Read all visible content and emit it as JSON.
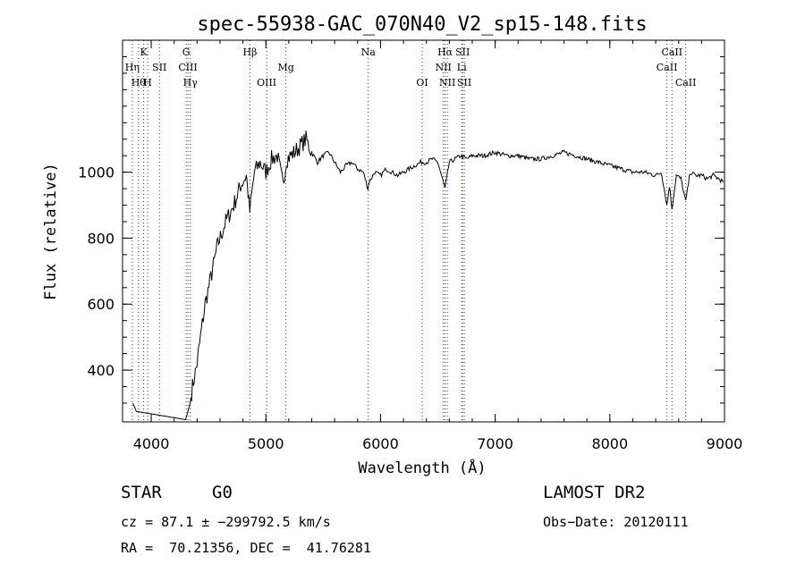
{
  "chart_data": {
    "type": "line",
    "title": "spec-55938-GAC_070N40_V2_sp15-148.fits",
    "xlabel": "Wavelength (Å)",
    "ylabel": "Flux (relative)",
    "xlim": [
      3750,
      9000
    ],
    "ylim": [
      243,
      1400
    ],
    "xticks": [
      "4000",
      "5000",
      "6000",
      "7000",
      "8000",
      "9000"
    ],
    "yticks": [
      "400",
      "600",
      "800",
      "1000"
    ],
    "grid": false,
    "spectrum": {
      "x": [
        3840,
        3870,
        4300,
        4340,
        4360,
        4400,
        4430,
        4470,
        4520,
        4580,
        4650,
        4720,
        4780,
        4830,
        4860,
        4900,
        4950,
        5000,
        5050,
        5100,
        5150,
        5180,
        5250,
        5300,
        5350,
        5400,
        5450,
        5500,
        5550,
        5600,
        5650,
        5700,
        5750,
        5800,
        5850,
        5890,
        5900,
        5950,
        6000,
        6050,
        6100,
        6150,
        6200,
        6250,
        6300,
        6350,
        6400,
        6450,
        6500,
        6563,
        6600,
        6650,
        6700,
        6750,
        6800,
        6900,
        7000,
        7100,
        7200,
        7300,
        7400,
        7500,
        7600,
        7700,
        7800,
        7900,
        8000,
        8100,
        8200,
        8300,
        8400,
        8450,
        8498,
        8520,
        8542,
        8580,
        8620,
        8662,
        8700,
        8750,
        8800,
        8850,
        8900,
        8950,
        8990
      ],
      "y": [
        300,
        275,
        250,
        300,
        350,
        420,
        500,
        600,
        680,
        780,
        850,
        900,
        960,
        990,
        880,
        1000,
        1030,
        1000,
        1040,
        1050,
        960,
        1040,
        1060,
        1080,
        1100,
        1060,
        1030,
        1050,
        1060,
        1030,
        1000,
        1020,
        1030,
        1010,
        1000,
        950,
        970,
        1000,
        990,
        1010,
        1000,
        990,
        1000,
        1010,
        1020,
        1030,
        1030,
        1040,
        1030,
        950,
        1030,
        1040,
        1050,
        1040,
        1050,
        1050,
        1060,
        1050,
        1050,
        1040,
        1040,
        1050,
        1060,
        1050,
        1040,
        1030,
        1020,
        1010,
        1000,
        1000,
        990,
        1000,
        900,
        960,
        890,
        990,
        980,
        910,
        1000,
        990,
        990,
        980,
        990,
        980,
        970
      ]
    },
    "lines": [
      {
        "wave": 3835,
        "label": "Hη",
        "row": 2
      },
      {
        "wave": 3889,
        "label": "Hθ",
        "row": 3
      },
      {
        "wave": 3934,
        "label": "K",
        "row": 1
      },
      {
        "wave": 3969,
        "label": "H",
        "row": 3
      },
      {
        "wave": 4072,
        "label": "SII",
        "row": 2
      },
      {
        "wave": 4305,
        "label": "G",
        "row": 1
      },
      {
        "wave": 4320,
        "label": "CIII",
        "row": 2
      },
      {
        "wave": 4341,
        "label": "Hγ",
        "row": 3
      },
      {
        "wave": 4861,
        "label": "Hβ",
        "row": 1
      },
      {
        "wave": 5007,
        "label": "OIII",
        "row": 3
      },
      {
        "wave": 5175,
        "label": "Mg",
        "row": 2
      },
      {
        "wave": 5893,
        "label": "Na",
        "row": 1
      },
      {
        "wave": 6364,
        "label": "OI",
        "row": 3
      },
      {
        "wave": 6548,
        "label": "NII",
        "row": 2
      },
      {
        "wave": 6563,
        "label": "Hα",
        "row": 1
      },
      {
        "wave": 6583,
        "label": "NII",
        "row": 3
      },
      {
        "wave": 6708,
        "label": "Li",
        "row": 2
      },
      {
        "wave": 6716,
        "label": "SII",
        "row": 1
      },
      {
        "wave": 6731,
        "label": "SII",
        "row": 3
      },
      {
        "wave": 8498,
        "label": "CaII",
        "row": 2
      },
      {
        "wave": 8542,
        "label": "CaII",
        "row": 1
      },
      {
        "wave": 8662,
        "label": "CaII",
        "row": 3
      }
    ],
    "colors": {
      "spectrum": "#000000",
      "line_markers": "#cc0000"
    }
  },
  "info": {
    "class": "STAR",
    "subclass": "G0",
    "survey": "LAMOST DR2",
    "cz": "cz = 87.1 ± −299792.5 km/s",
    "obs_date": "Obs−Date: 20120111",
    "coords": "RA =  70.21356, DEC =  41.76281"
  }
}
